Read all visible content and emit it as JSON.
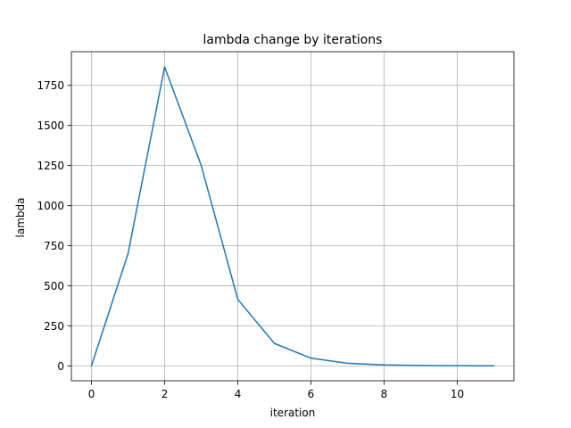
{
  "chart_data": {
    "type": "line",
    "title": "lambda change by iterations",
    "xlabel": "iteration",
    "ylabel": "lambda",
    "xlim": [
      -0.55,
      11.55
    ],
    "ylim": [
      -93,
      1960
    ],
    "xticks": [
      0,
      2,
      4,
      6,
      8,
      10
    ],
    "yticks": [
      0,
      250,
      500,
      750,
      1000,
      1250,
      1500,
      1750
    ],
    "grid": true,
    "line_color": "#1f77b4",
    "series": [
      {
        "x": [
          0,
          1,
          2,
          3,
          4,
          5,
          6,
          7,
          8,
          9,
          10,
          11
        ],
        "values": [
          1,
          700,
          1865,
          1250,
          415,
          140,
          48,
          16,
          6,
          2,
          1,
          0.5
        ]
      }
    ]
  }
}
